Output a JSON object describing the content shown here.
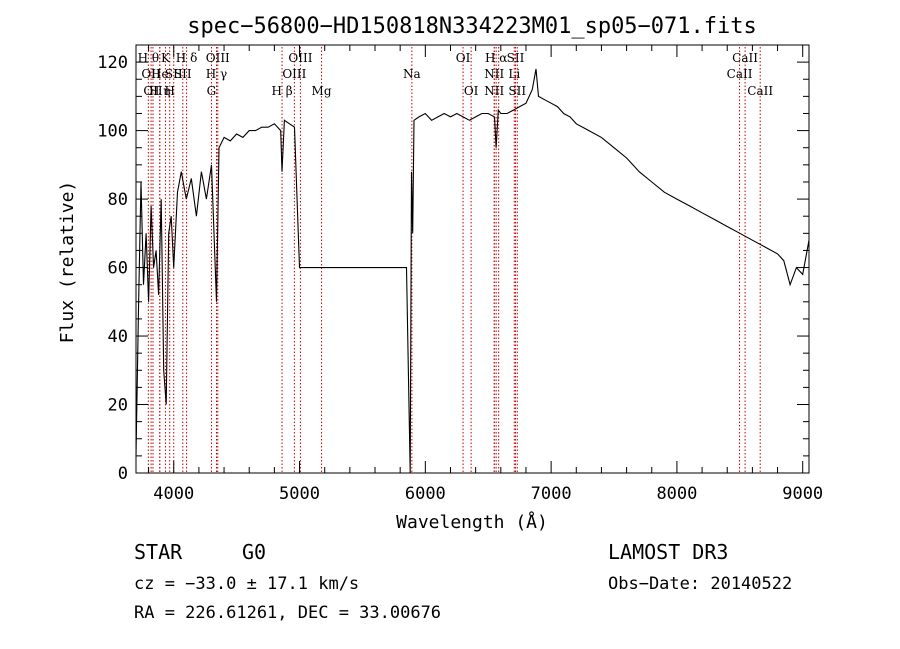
{
  "chart_data": {
    "type": "line",
    "title": "spec−56800−HD150818N334223M01_sp05−071.fits",
    "xlabel": "Wavelength (Å)",
    "ylabel": "Flux (relative)",
    "xlim": [
      3700,
      9050
    ],
    "ylim": [
      0,
      125
    ],
    "xticks": [
      4000,
      5000,
      6000,
      7000,
      8000,
      9000
    ],
    "yticks": [
      0,
      20,
      40,
      60,
      80,
      100,
      120
    ],
    "line_color": "#000000",
    "marker_color": "#cc0000",
    "series": [
      {
        "x": [
          3700,
          3720,
          3740,
          3760,
          3780,
          3800,
          3820,
          3840,
          3860,
          3880,
          3900,
          3920,
          3940,
          3960,
          3980,
          4000,
          4030,
          4060,
          4100,
          4140,
          4180,
          4220,
          4260,
          4300,
          4340,
          4360,
          4400,
          4450,
          4500,
          4550,
          4600,
          4650,
          4700,
          4750,
          4800,
          4850,
          4861,
          4880,
          4920,
          4960,
          5000,
          5050,
          5100,
          5150,
          5200,
          5250,
          5300,
          5350,
          5400,
          5450,
          5500,
          5550,
          5600,
          5650,
          5700,
          5750,
          5800,
          5850,
          5880,
          5890,
          5900,
          5910,
          5950,
          6000,
          6050,
          6100,
          6150,
          6200,
          6250,
          6300,
          6350,
          6400,
          6450,
          6500,
          6550,
          6563,
          6580,
          6600,
          6650,
          6700,
          6750,
          6800,
          6850,
          6880,
          6900,
          6950,
          7000,
          7050,
          7100,
          7150,
          7200,
          7300,
          7400,
          7500,
          7600,
          7700,
          7800,
          7900,
          8000,
          8100,
          8200,
          8300,
          8400,
          8500,
          8600,
          8700,
          8800,
          8850,
          8900,
          8950,
          9000,
          9050
        ],
        "y": [
          5,
          48,
          85,
          55,
          70,
          50,
          78,
          60,
          65,
          52,
          80,
          30,
          20,
          70,
          75,
          60,
          82,
          88,
          80,
          86,
          75,
          88,
          80,
          90,
          50,
          95,
          98,
          97,
          99,
          98,
          100,
          100,
          101,
          101,
          102,
          100,
          88,
          103,
          102,
          101,
          60,
          60,
          60,
          60,
          60,
          60,
          60,
          60,
          60,
          60,
          60,
          60,
          60,
          60,
          60,
          60,
          60,
          60,
          0,
          88,
          70,
          103,
          104,
          105,
          103,
          104,
          105,
          104,
          105,
          104,
          103,
          104,
          105,
          105,
          104,
          95,
          106,
          105,
          105,
          106,
          107,
          108,
          112,
          118,
          110,
          109,
          108,
          107,
          105,
          104,
          102,
          100,
          98,
          95,
          92,
          88,
          85,
          82,
          80,
          78,
          76,
          74,
          72,
          70,
          68,
          66,
          64,
          62,
          55,
          60,
          58,
          68
        ]
      }
    ],
    "lines": [
      {
        "wl": 3798,
        "row": 1,
        "label": "H θ"
      },
      {
        "wl": 3820,
        "row": 2,
        "label": "OII"
      },
      {
        "wl": 3835,
        "row": 3,
        "label": "OII"
      },
      {
        "wl": 3889,
        "row": 2,
        "label": "He"
      },
      {
        "wl": 3889,
        "row": 3,
        "label": "H η"
      },
      {
        "wl": 3934,
        "row": 1,
        "label": "K"
      },
      {
        "wl": 3968,
        "row": 3,
        "label": "H"
      },
      {
        "wl": 4000,
        "row": 2,
        "label": "SII"
      },
      {
        "wl": 4102,
        "row": 1,
        "label": "H δ"
      },
      {
        "wl": 4072,
        "row": 2,
        "label": "SII"
      },
      {
        "wl": 4300,
        "row": 3,
        "label": "G"
      },
      {
        "wl": 4340,
        "row": 2,
        "label": "H γ"
      },
      {
        "wl": 4350,
        "row": 1,
        "label": "OIII"
      },
      {
        "wl": 4861,
        "row": 3,
        "label": "H β"
      },
      {
        "wl": 4959,
        "row": 2,
        "label": "OIII"
      },
      {
        "wl": 5007,
        "row": 1,
        "label": "OIII"
      },
      {
        "wl": 5175,
        "row": 3,
        "label": "Mg"
      },
      {
        "wl": 5893,
        "row": 2,
        "label": "Na"
      },
      {
        "wl": 6300,
        "row": 1,
        "label": "OI"
      },
      {
        "wl": 6364,
        "row": 3,
        "label": "OI"
      },
      {
        "wl": 6548,
        "row": 2,
        "label": "NII"
      },
      {
        "wl": 6548,
        "row": 3,
        "label": "NII"
      },
      {
        "wl": 6563,
        "row": 1,
        "label": "H α"
      },
      {
        "wl": 6583,
        "row": 1,
        "label": ""
      },
      {
        "wl": 6707,
        "row": 2,
        "label": "Li"
      },
      {
        "wl": 6717,
        "row": 1,
        "label": "SII"
      },
      {
        "wl": 6731,
        "row": 3,
        "label": "SII"
      },
      {
        "wl": 8498,
        "row": 2,
        "label": "CaII"
      },
      {
        "wl": 8542,
        "row": 1,
        "label": "CaII"
      },
      {
        "wl": 8662,
        "row": 3,
        "label": "CaII"
      }
    ]
  },
  "info": {
    "class": "STAR",
    "subclass": "G0",
    "survey": "LAMOST DR3",
    "cz": "cz = −33.0 ± 17.1 km/s",
    "obsdate": "Obs−Date: 20140522",
    "radec": "RA = 226.61261, DEC =  33.00676"
  }
}
